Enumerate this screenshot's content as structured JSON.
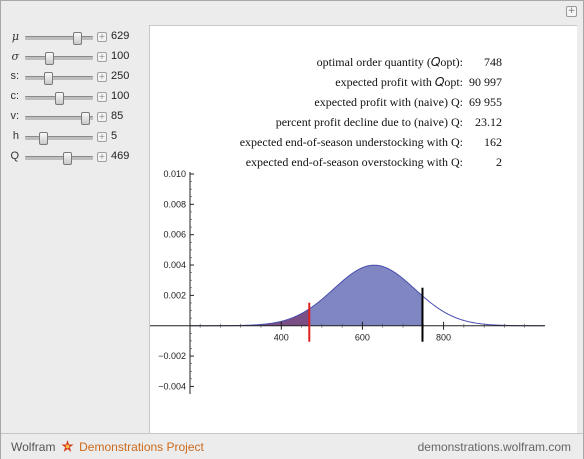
{
  "sliders": [
    {
      "label": "μ",
      "symbol": true,
      "value": "629",
      "position": 0.78
    },
    {
      "label": "σ",
      "symbol": true,
      "value": "100",
      "position": 0.33
    },
    {
      "label": "s:",
      "symbol": false,
      "value": "250",
      "position": 0.3
    },
    {
      "label": "c:",
      "symbol": false,
      "value": "100",
      "position": 0.48
    },
    {
      "label": "v:",
      "symbol": false,
      "value": "85",
      "position": 0.9
    },
    {
      "label": "h",
      "symbol": false,
      "value": "5",
      "position": 0.22
    },
    {
      "label": "Q",
      "symbol": false,
      "value": "469",
      "position": 0.62
    }
  ],
  "stats": [
    {
      "label": "optimal order quantity (𝑄opt):",
      "value": "748"
    },
    {
      "label": "expected profit with 𝑄opt:",
      "value": "90 997"
    },
    {
      "label": "expected profit with (naive) Q:",
      "value": "69 955"
    },
    {
      "label": "percent profit decline due to (naive) Q:",
      "value": "23.12"
    },
    {
      "label": "expected end-of-season understocking with Q:",
      "value": "162"
    },
    {
      "label": "expected end-of-season overstocking with Q:",
      "value": "2"
    }
  ],
  "chart_data": {
    "type": "area",
    "distribution": "normal",
    "mean": 629,
    "sd": 100,
    "xlim": [
      175,
      1050
    ],
    "ylim": [
      -0.0045,
      0.01
    ],
    "x_ticks": [
      400,
      600,
      800
    ],
    "x_tick_labels": [
      "400",
      "600",
      "800"
    ],
    "y_ticks": [
      -0.004,
      -0.002,
      0.002,
      0.004,
      0.006,
      0.008,
      0.01
    ],
    "y_tick_labels": [
      "−0.004",
      "−0.002",
      "0.002",
      "0.004",
      "0.006",
      "0.008",
      "0.010"
    ],
    "shaded_from": 175,
    "shaded_to": 748,
    "dark_region_to": 469,
    "vlines": [
      {
        "x": 469,
        "color": "#e02020",
        "role": "naive Q"
      },
      {
        "x": 748,
        "color": "#000000",
        "role": "Q opt"
      }
    ],
    "colors": {
      "fill": "#8086c2",
      "fill_dark": "#7a4f86",
      "line": "#4a4fae"
    }
  },
  "footer": {
    "brand_left": "Wolfram",
    "brand_right": "Demonstrations Project",
    "site": "demonstrations.wolfram.com"
  },
  "colors": {
    "accent": "#cc6a1c"
  }
}
